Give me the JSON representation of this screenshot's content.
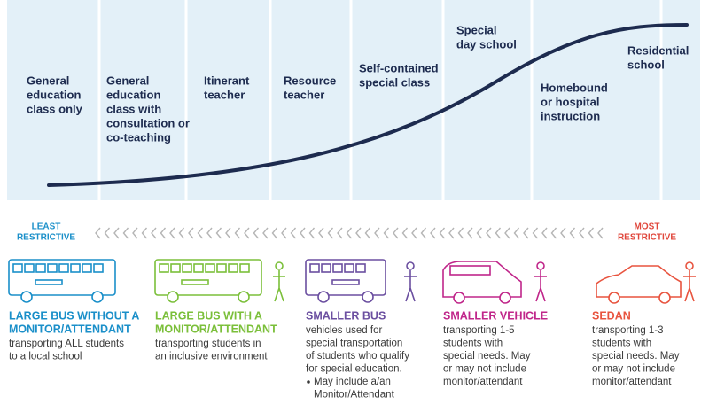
{
  "placements": [
    [
      "General",
      "education",
      "class only"
    ],
    [
      "General",
      "education",
      "class with",
      "consultation or",
      "co-teaching"
    ],
    [
      "Itinerant",
      "teacher"
    ],
    [
      "Resource",
      "teacher"
    ],
    [
      "Self-contained",
      "special class"
    ],
    [
      "Special",
      "day school"
    ],
    [
      "Homebound",
      "or hospital",
      "instruction"
    ],
    [
      "Residential",
      "school"
    ]
  ],
  "scale": {
    "least": [
      "LEAST",
      "RESTRICTIVE"
    ],
    "most": [
      "MOST",
      "RESTRICTIVE"
    ]
  },
  "vehicles": [
    {
      "title": [
        "LARGE BUS WITHOUT A",
        "MONITOR/ATTENDANT"
      ],
      "description": [
        "transporting ALL students",
        "to a local school"
      ],
      "color": "#1a8fc9"
    },
    {
      "title": [
        "LARGE BUS WITH A",
        "MONITOR/ATTENDANT"
      ],
      "description": [
        "transporting students in",
        "an inclusive environment"
      ],
      "color": "#7bbf3a"
    },
    {
      "title": [
        "SMALLER BUS"
      ],
      "description": [
        "vehicles used for",
        "special transportation",
        "of students who qualify",
        "for special education."
      ],
      "bullet": [
        "May include a/an",
        "Monitor/Attendant"
      ],
      "color": "#6b4fa0"
    },
    {
      "title": [
        "SMALLER VEHICLE"
      ],
      "description": [
        "transporting 1-5",
        "students with",
        "special needs. May",
        "or may not include",
        "monitor/attendant"
      ],
      "color": "#c0268a"
    },
    {
      "title": [
        "SEDAN"
      ],
      "description": [
        "transporting 1-3",
        "students with",
        "special needs. May",
        "or may not include",
        "monitor/attendant"
      ],
      "color": "#e8543f"
    }
  ]
}
